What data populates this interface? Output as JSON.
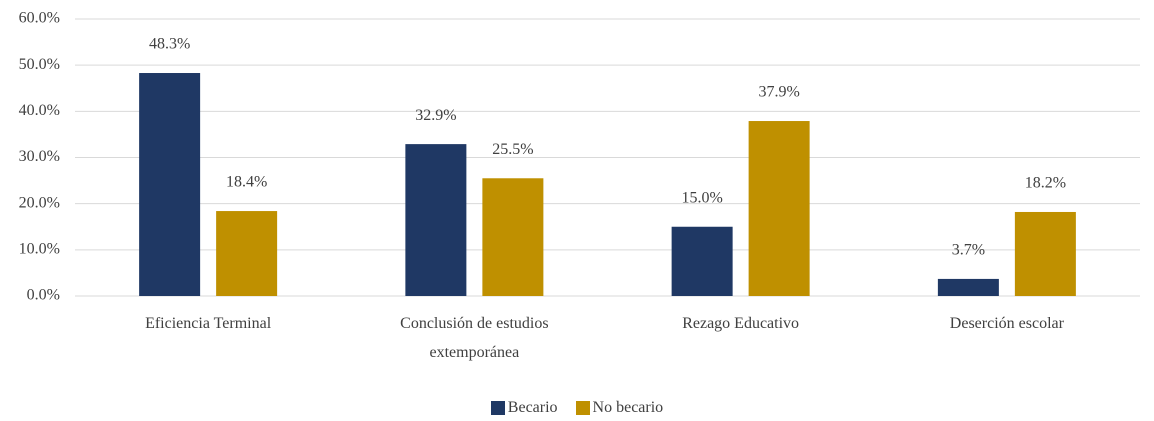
{
  "chart_data": {
    "type": "bar",
    "categories": [
      "Eficiencia Terminal",
      "Conclusión de estudios extemporánea",
      "Rezago Educativo",
      "Deserción escolar"
    ],
    "series": [
      {
        "name": "Becario",
        "color": "#1f3864",
        "values": [
          48.3,
          32.9,
          15.0,
          3.7
        ],
        "value_labels": [
          "48.3%",
          "32.9%",
          "15.0%",
          "3.7%"
        ]
      },
      {
        "name": "No becario",
        "color": "#bf9000",
        "values": [
          18.4,
          25.5,
          37.9,
          18.2
        ],
        "value_labels": [
          "18.4%",
          "25.5%",
          "37.9%",
          "18.2%"
        ]
      }
    ],
    "ylim": [
      0,
      60
    ],
    "yticks": [
      {
        "value": 0,
        "label": "0.0%"
      },
      {
        "value": 10,
        "label": "10.0%"
      },
      {
        "value": 20,
        "label": "20.0%"
      },
      {
        "value": 30,
        "label": "30.0%"
      },
      {
        "value": 40,
        "label": "40.0%"
      },
      {
        "value": 50,
        "label": "50.0%"
      },
      {
        "value": 60,
        "label": "60.0%"
      }
    ],
    "grid": true,
    "legend": "bottom"
  }
}
